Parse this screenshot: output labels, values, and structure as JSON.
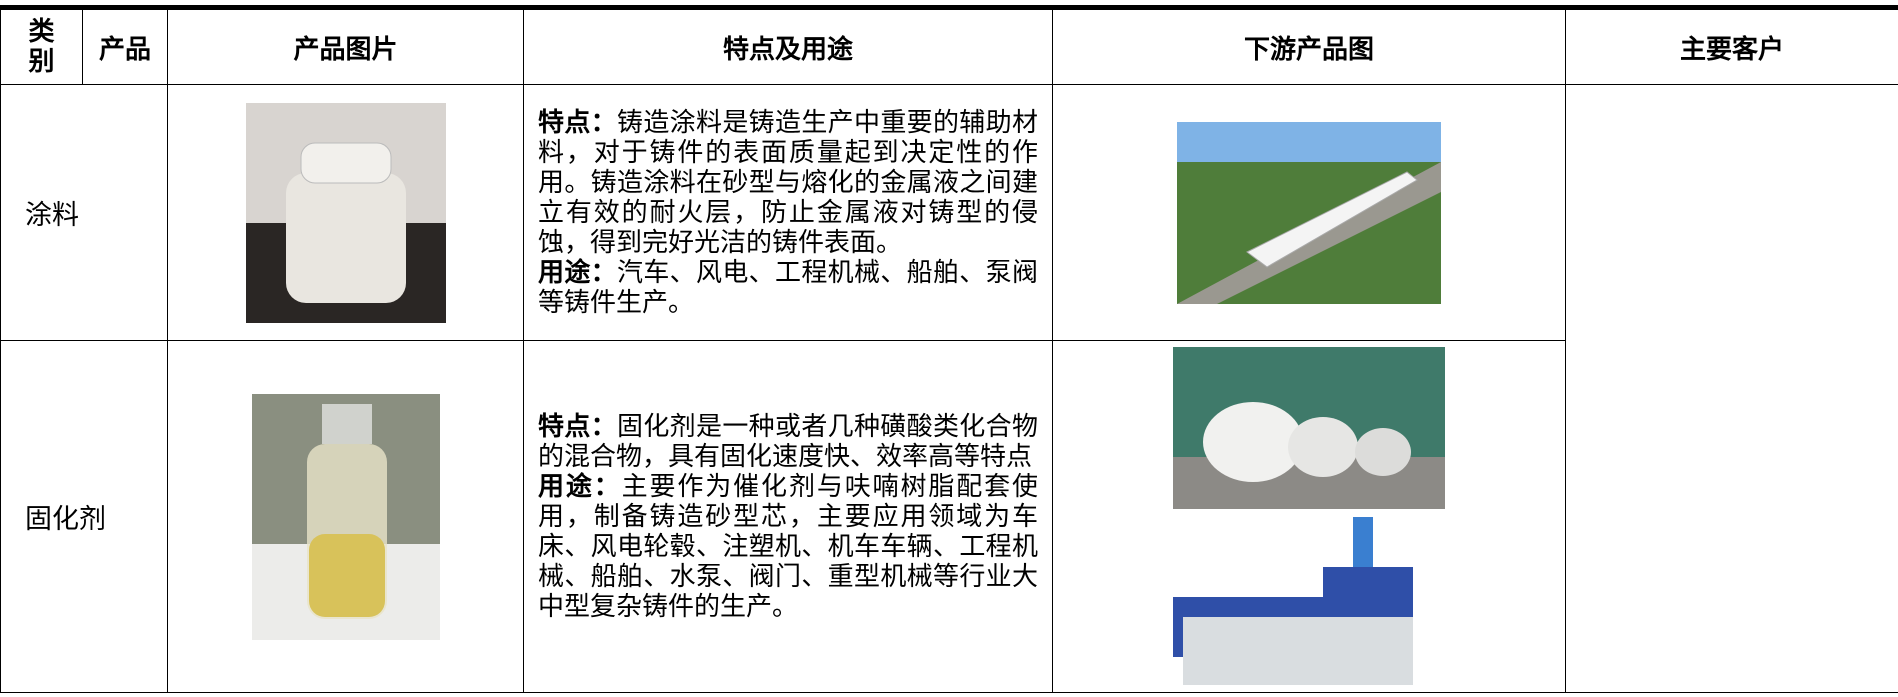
{
  "table": {
    "header": [
      "类别",
      "产品",
      "产品图片",
      "特点及用途",
      "下游产品图",
      "主要客户"
    ],
    "rows": [
      {
        "product": "涂料",
        "feature_label": "特点：",
        "feature": "铸造涂料是铸造生产中重要的辅助材料，对于铸件的表面质量起到决定性的作用。铸造涂料在砂型与熔化的金属液之间建立有效的耐火层，防止金属液对铸型的侵蚀，得到完好光洁的铸件表面。",
        "use_label": "用途：",
        "use": "汽车、风电、工程机械、船舶、泵阀等铸件生产。"
      },
      {
        "product": "固化剂",
        "feature_label": "特点：",
        "feature": "固化剂是一种或者几种磺酸类化合物的混合物，具有固化速度快、效率高等特点",
        "use_label": "用途：",
        "use": "主要作为催化剂与呋喃树脂配套使用，制备铸造砂型芯，主要应用领域为车床、风电轮毂、注塑机、机车车辆、工程机械、船舶、水泵、阀门、重型机械等行业大中型复杂铸件的生产。"
      }
    ]
  }
}
